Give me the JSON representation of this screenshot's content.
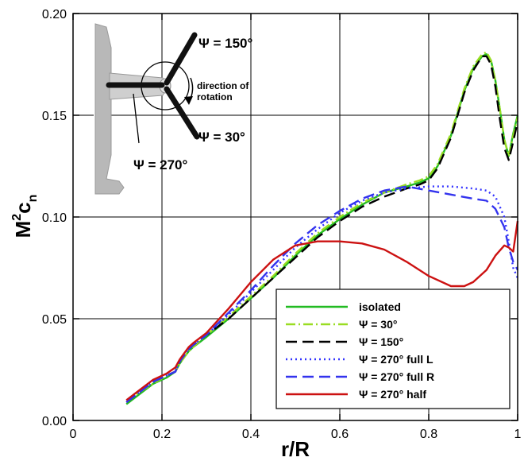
{
  "chart_data": {
    "type": "line",
    "xlabel": "r/R",
    "ylabel_main": "M",
    "ylabel_sup": "2",
    "ylabel_tail": "c",
    "ylabel_sub": "n",
    "xlim": [
      0,
      1
    ],
    "ylim": [
      0,
      0.2
    ],
    "xticks": [
      "0",
      "0.2",
      "0.4",
      "0.6",
      "0.8",
      "1"
    ],
    "yticks": [
      "0.00",
      "0.05",
      "0.10",
      "0.15",
      "0.20"
    ],
    "grid": true,
    "legend_position": "bottom-right",
    "series": [
      {
        "name": "isolated",
        "color": "#22bb22",
        "dash": "solid",
        "x": [
          0.12,
          0.15,
          0.18,
          0.21,
          0.23,
          0.24,
          0.25,
          0.26,
          0.27,
          0.3,
          0.35,
          0.4,
          0.45,
          0.5,
          0.55,
          0.6,
          0.65,
          0.7,
          0.75,
          0.78,
          0.8,
          0.82,
          0.85,
          0.88,
          0.9,
          0.92,
          0.93,
          0.94,
          0.95,
          0.96,
          0.97,
          0.98,
          0.99,
          1.0
        ],
        "y": [
          0.008,
          0.013,
          0.018,
          0.021,
          0.024,
          0.028,
          0.031,
          0.034,
          0.036,
          0.041,
          0.05,
          0.06,
          0.07,
          0.081,
          0.091,
          0.099,
          0.106,
          0.112,
          0.115,
          0.117,
          0.119,
          0.125,
          0.14,
          0.162,
          0.173,
          0.179,
          0.18,
          0.177,
          0.167,
          0.153,
          0.138,
          0.13,
          0.141,
          0.15
        ]
      },
      {
        "name": "Ψ = 30°",
        "color": "#99dd22",
        "dash": "dashdot",
        "x": [
          0.12,
          0.15,
          0.18,
          0.21,
          0.23,
          0.24,
          0.25,
          0.26,
          0.27,
          0.3,
          0.35,
          0.4,
          0.45,
          0.5,
          0.55,
          0.6,
          0.65,
          0.7,
          0.75,
          0.78,
          0.8,
          0.82,
          0.85,
          0.88,
          0.9,
          0.92,
          0.93,
          0.94,
          0.95,
          0.96,
          0.97,
          0.98,
          0.99,
          1.0
        ],
        "y": [
          0.009,
          0.014,
          0.018,
          0.022,
          0.024,
          0.028,
          0.031,
          0.034,
          0.036,
          0.042,
          0.051,
          0.061,
          0.071,
          0.082,
          0.092,
          0.1,
          0.107,
          0.112,
          0.116,
          0.118,
          0.12,
          0.126,
          0.141,
          0.163,
          0.174,
          0.18,
          0.181,
          0.177,
          0.167,
          0.153,
          0.138,
          0.13,
          0.14,
          0.149
        ]
      },
      {
        "name": "Ψ = 150°",
        "color": "#000000",
        "dash": "longdash",
        "x": [
          0.12,
          0.15,
          0.18,
          0.21,
          0.23,
          0.24,
          0.25,
          0.26,
          0.27,
          0.3,
          0.35,
          0.4,
          0.45,
          0.5,
          0.55,
          0.6,
          0.65,
          0.7,
          0.75,
          0.78,
          0.8,
          0.82,
          0.85,
          0.88,
          0.9,
          0.92,
          0.93,
          0.94,
          0.95,
          0.96,
          0.97,
          0.98,
          0.99,
          1.0
        ],
        "y": [
          0.009,
          0.014,
          0.019,
          0.022,
          0.024,
          0.029,
          0.032,
          0.035,
          0.037,
          0.042,
          0.05,
          0.06,
          0.07,
          0.08,
          0.09,
          0.098,
          0.105,
          0.11,
          0.114,
          0.116,
          0.118,
          0.124,
          0.139,
          0.161,
          0.172,
          0.179,
          0.179,
          0.175,
          0.164,
          0.148,
          0.134,
          0.128,
          0.137,
          0.147
        ]
      },
      {
        "name": "Ψ = 270° full L",
        "color": "#3333ff",
        "dash": "dotted",
        "x": [
          0.12,
          0.15,
          0.18,
          0.21,
          0.23,
          0.24,
          0.25,
          0.26,
          0.27,
          0.3,
          0.35,
          0.4,
          0.45,
          0.5,
          0.55,
          0.6,
          0.65,
          0.7,
          0.75,
          0.8,
          0.85,
          0.9,
          0.93,
          0.95,
          0.97,
          0.98,
          0.99,
          1.0
        ],
        "y": [
          0.009,
          0.014,
          0.019,
          0.022,
          0.024,
          0.029,
          0.032,
          0.035,
          0.037,
          0.042,
          0.052,
          0.063,
          0.074,
          0.085,
          0.094,
          0.102,
          0.108,
          0.112,
          0.114,
          0.115,
          0.115,
          0.114,
          0.113,
          0.11,
          0.1,
          0.088,
          0.075,
          0.07
        ]
      },
      {
        "name": "Ψ = 270° full R",
        "color": "#3333ee",
        "dash": "longdash",
        "x": [
          0.12,
          0.15,
          0.18,
          0.21,
          0.23,
          0.24,
          0.25,
          0.26,
          0.27,
          0.3,
          0.35,
          0.4,
          0.45,
          0.5,
          0.55,
          0.6,
          0.65,
          0.7,
          0.75,
          0.8,
          0.85,
          0.9,
          0.93,
          0.95,
          0.97,
          0.98,
          0.99,
          1.0
        ],
        "y": [
          0.009,
          0.014,
          0.019,
          0.022,
          0.024,
          0.029,
          0.032,
          0.035,
          0.037,
          0.042,
          0.053,
          0.064,
          0.076,
          0.087,
          0.096,
          0.103,
          0.109,
          0.113,
          0.115,
          0.113,
          0.111,
          0.109,
          0.108,
          0.104,
          0.095,
          0.085,
          0.078,
          0.074
        ]
      },
      {
        "name": "Ψ = 270° half",
        "color": "#cc1111",
        "dash": "solid",
        "x": [
          0.12,
          0.15,
          0.18,
          0.21,
          0.23,
          0.24,
          0.25,
          0.26,
          0.27,
          0.3,
          0.35,
          0.4,
          0.45,
          0.5,
          0.55,
          0.6,
          0.65,
          0.7,
          0.75,
          0.8,
          0.85,
          0.88,
          0.9,
          0.93,
          0.95,
          0.97,
          0.98,
          0.99,
          1.0
        ],
        "y": [
          0.01,
          0.015,
          0.02,
          0.023,
          0.026,
          0.03,
          0.033,
          0.036,
          0.038,
          0.043,
          0.055,
          0.068,
          0.079,
          0.086,
          0.088,
          0.088,
          0.087,
          0.084,
          0.078,
          0.071,
          0.066,
          0.066,
          0.068,
          0.074,
          0.081,
          0.086,
          0.085,
          0.083,
          0.098
        ]
      }
    ]
  },
  "inset": {
    "label_150": "Ψ = 150°",
    "label_30": "Ψ = 30°",
    "label_270": "Ψ = 270°",
    "rotation_line1": "direction of",
    "rotation_line2": "rotation"
  }
}
